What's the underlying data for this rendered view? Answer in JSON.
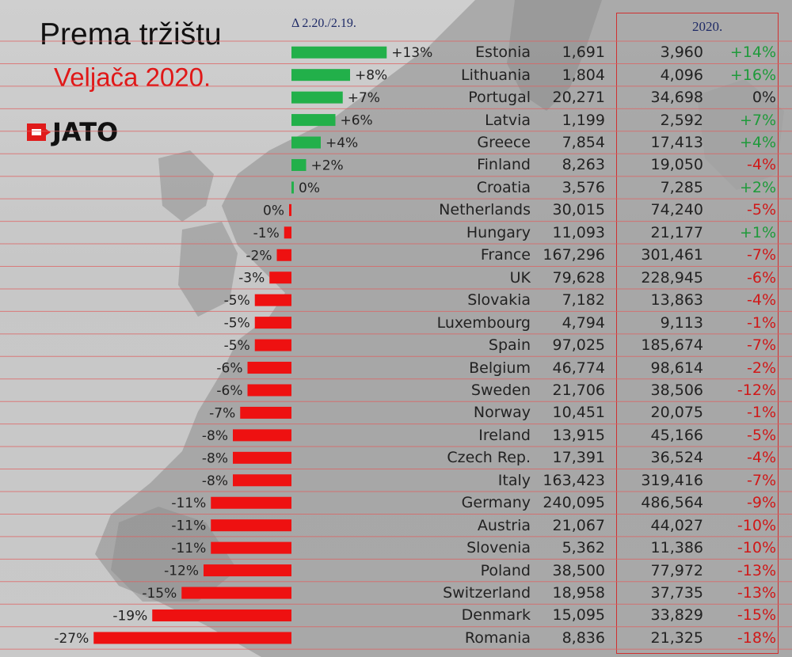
{
  "header": {
    "title": "Prema tržištu",
    "subtitle": "Veljača 2020.",
    "delta_label": "Δ 2.20./2.19.",
    "year_label": "2020.",
    "logo_text": "JATO"
  },
  "colors": {
    "positive_bar": "#22b04a",
    "negative_bar": "#ee1111",
    "positive_text": "#1e9a3a",
    "negative_text": "#d01818",
    "row_line": "#e06060"
  },
  "chart_data": {
    "type": "bar",
    "orientation": "horizontal",
    "categories": [
      "Estonia",
      "Lithuania",
      "Portugal",
      "Latvia",
      "Greece",
      "Finland",
      "Croatia",
      "Netherlands",
      "Hungary",
      "France",
      "UK",
      "Slovakia",
      "Luxembourg",
      "Spain",
      "Belgium",
      "Sweden",
      "Norway",
      "Ireland",
      "Czech Rep.",
      "Italy",
      "Germany",
      "Austria",
      "Slovenia",
      "Poland",
      "Switzerland",
      "Denmark",
      "Romania"
    ],
    "values": [
      13,
      8,
      7,
      6,
      4,
      2,
      0,
      0,
      -1,
      -2,
      -3,
      -5,
      -5,
      -5,
      -6,
      -6,
      -7,
      -8,
      -8,
      -8,
      -11,
      -11,
      -11,
      -12,
      -15,
      -19,
      -27
    ],
    "value_labels": [
      "+13%",
      "+8%",
      "+7%",
      "+6%",
      "+4%",
      "+2%",
      "0%",
      "0%",
      "-1%",
      "-2%",
      "-3%",
      "-5%",
      "-5%",
      "-5%",
      "-6%",
      "-6%",
      "-7%",
      "-8%",
      "-8%",
      "-8%",
      "-11%",
      "-11%",
      "-11%",
      "-12%",
      "-15%",
      "-19%",
      "-27%"
    ],
    "col_2019": [
      "1,691",
      "1,804",
      "20,271",
      "1,199",
      "7,854",
      "8,263",
      "3,576",
      "30,015",
      "11,093",
      "167,296",
      "79,628",
      "7,182",
      "4,794",
      "97,025",
      "46,774",
      "21,706",
      "10,451",
      "13,915",
      "17,391",
      "163,423",
      "240,095",
      "21,067",
      "5,362",
      "38,500",
      "18,958",
      "15,095",
      "8,836"
    ],
    "col_2020": [
      "3,960",
      "4,096",
      "34,698",
      "2,592",
      "17,413",
      "19,050",
      "7,285",
      "74,240",
      "21,177",
      "301,461",
      "228,945",
      "13,863",
      "9,113",
      "185,674",
      "98,614",
      "38,506",
      "20,075",
      "45,166",
      "36,524",
      "319,416",
      "486,564",
      "44,027",
      "11,386",
      "77,972",
      "37,735",
      "33,829",
      "21,325"
    ],
    "change_2020": [
      "+14%",
      "+16%",
      "0%",
      "+7%",
      "+4%",
      "-4%",
      "+2%",
      "-5%",
      "+1%",
      "-7%",
      "-6%",
      "-4%",
      "-1%",
      "-7%",
      "-2%",
      "-12%",
      "-1%",
      "-5%",
      "-4%",
      "-7%",
      "-9%",
      "-10%",
      "-10%",
      "-13%",
      "-13%",
      "-15%",
      "-18%"
    ],
    "title": "Prema tržištu",
    "subtitle": "Veljača 2020."
  }
}
